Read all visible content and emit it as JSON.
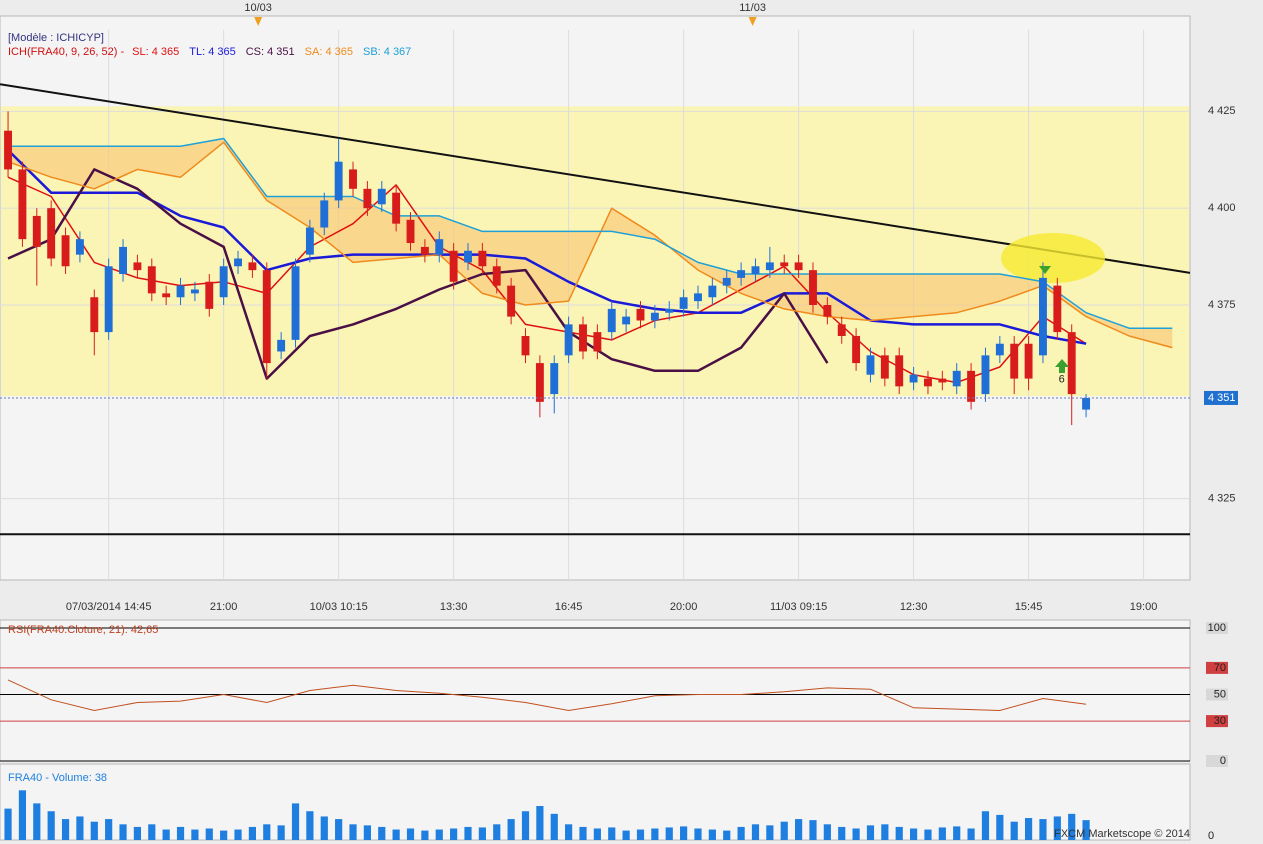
{
  "chart_data": [
    {
      "type": "candlestick",
      "title": "[Modèle : ICHICYP]",
      "subtitle": "ICH(FRA40, 9, 26, 52) -",
      "x": [
        0,
        1,
        2,
        3,
        4,
        5,
        6,
        7,
        8,
        9,
        10,
        11,
        12,
        13,
        14,
        15,
        16,
        17,
        18,
        19,
        20,
        21,
        22,
        23,
        24,
        25,
        26,
        27,
        28,
        29,
        30,
        31,
        32,
        33,
        34,
        35,
        36,
        37,
        38,
        39,
        40,
        41,
        42,
        43,
        44,
        45,
        46,
        47,
        48,
        49,
        50,
        51,
        52,
        53,
        54,
        55,
        56,
        57,
        58,
        59,
        60,
        61,
        62,
        63,
        64,
        65,
        66,
        67,
        68,
        69,
        70,
        71,
        72,
        73,
        74,
        75
      ],
      "open": [
        4420,
        4410,
        4398,
        4400,
        4393,
        4388,
        4377,
        4368,
        4383,
        4386,
        4385,
        4378,
        4377,
        4378,
        4381,
        4377,
        4385,
        4386,
        4384,
        4363,
        4366,
        4388,
        4395,
        4402,
        4410,
        4405,
        4401,
        4404,
        4397,
        4390,
        4388,
        4389,
        4386,
        4389,
        4385,
        4380,
        4367,
        4360,
        4352,
        4362,
        4370,
        4368,
        4368,
        4370,
        4374,
        4371,
        4373,
        4374,
        4376,
        4377,
        4380,
        4382,
        4383,
        4384,
        4386,
        4386,
        4384,
        4375,
        4370,
        4367,
        4357,
        4362,
        4362,
        4355,
        4356,
        4356,
        4354,
        4358,
        4352,
        4362,
        4365,
        4365,
        4362,
        4380,
        4368,
        4348
      ],
      "high": [
        4425,
        4412,
        4400,
        4402,
        4395,
        4394,
        4379,
        4387,
        4392,
        4388,
        4387,
        4380,
        4382,
        4381,
        4383,
        4387,
        4389,
        4388,
        4386,
        4368,
        4387,
        4397,
        4404,
        4418,
        4412,
        4407,
        4407,
        4406,
        4399,
        4392,
        4394,
        4391,
        4391,
        4391,
        4387,
        4382,
        4369,
        4362,
        4362,
        4372,
        4372,
        4370,
        4376,
        4374,
        4376,
        4375,
        4376,
        4379,
        4380,
        4382,
        4384,
        4386,
        4387,
        4390,
        4388,
        4388,
        4386,
        4377,
        4372,
        4369,
        4364,
        4364,
        4364,
        4359,
        4358,
        4358,
        4360,
        4360,
        4364,
        4367,
        4367,
        4367,
        4386,
        4382,
        4370,
        4352
      ],
      "low": [
        4408,
        4390,
        4380,
        4385,
        4383,
        4386,
        4362,
        4366,
        4381,
        4382,
        4376,
        4375,
        4375,
        4376,
        4372,
        4375,
        4383,
        4382,
        4356,
        4361,
        4364,
        4386,
        4393,
        4400,
        4403,
        4398,
        4399,
        4394,
        4389,
        4386,
        4386,
        4379,
        4384,
        4383,
        4378,
        4370,
        4360,
        4346,
        4347,
        4360,
        4361,
        4361,
        4366,
        4368,
        4369,
        4369,
        4371,
        4372,
        4374,
        4375,
        4378,
        4380,
        4381,
        4382,
        4383,
        4382,
        4373,
        4370,
        4365,
        4358,
        4355,
        4354,
        4352,
        4353,
        4352,
        4353,
        4352,
        4348,
        4350,
        4360,
        4352,
        4353,
        4360,
        4366,
        4344,
        4346
      ],
      "close": [
        4410,
        4392,
        4390,
        4387,
        4385,
        4392,
        4368,
        4385,
        4390,
        4384,
        4378,
        4377,
        4380,
        4379,
        4374,
        4385,
        4387,
        4384,
        4360,
        4366,
        4385,
        4395,
        4402,
        4412,
        4405,
        4400,
        4405,
        4396,
        4391,
        4388,
        4392,
        4381,
        4389,
        4385,
        4380,
        4372,
        4362,
        4350,
        4360,
        4370,
        4363,
        4363,
        4374,
        4372,
        4371,
        4373,
        4374,
        4377,
        4378,
        4380,
        4382,
        4384,
        4385,
        4386,
        4385,
        4384,
        4375,
        4372,
        4367,
        4360,
        4362,
        4356,
        4354,
        4357,
        4354,
        4355,
        4358,
        4350,
        4362,
        4365,
        4356,
        4356,
        4382,
        4368,
        4352,
        4351
      ],
      "up_color": "#1f6fd6",
      "down_color": "#d81c1c",
      "series": [
        {
          "label": "SL: 4 365",
          "color": "#e01010",
          "width": 1.5,
          "x": [
            0,
            3,
            6,
            9,
            12,
            15,
            18,
            21,
            24,
            27,
            30,
            33,
            36,
            39,
            42,
            45,
            48,
            51,
            54,
            57,
            60,
            63,
            66,
            69,
            72,
            75
          ],
          "values": [
            4408,
            4403,
            4386,
            4382,
            4380,
            4381,
            4378,
            4390,
            4396,
            4406,
            4390,
            4384,
            4370,
            4368,
            4366,
            4371,
            4373,
            4379,
            4385,
            4373,
            4363,
            4357,
            4355,
            4359,
            4372,
            4365
          ]
        },
        {
          "label": "TL: 4 365",
          "color": "#1a1ad8",
          "width": 2.5,
          "x": [
            0,
            3,
            6,
            9,
            12,
            15,
            18,
            21,
            24,
            27,
            30,
            33,
            36,
            39,
            42,
            45,
            48,
            51,
            54,
            57,
            60,
            63,
            66,
            69,
            72,
            75
          ],
          "values": [
            4415,
            4404,
            4404,
            4404,
            4398,
            4395,
            4384,
            4387,
            4388,
            4388,
            4388,
            4388,
            4387,
            4381,
            4376,
            4374,
            4373,
            4373,
            4378,
            4378,
            4371,
            4370,
            4370,
            4370,
            4367,
            4365
          ]
        },
        {
          "label": "CS: 4 351",
          "color": "#4a0f45",
          "width": 2.5,
          "x": [
            0,
            3,
            6,
            9,
            12,
            15,
            18,
            21,
            24,
            27,
            30,
            33,
            36,
            39,
            42,
            45,
            48,
            51,
            54,
            57
          ],
          "values": [
            4387,
            4392,
            4410,
            4405,
            4396,
            4390,
            4356,
            4367,
            4370,
            4374,
            4379,
            4383,
            4384,
            4368,
            4361,
            4358,
            4358,
            4364,
            4378,
            4360
          ]
        },
        {
          "label": "SA: 4 365",
          "color": "#f08a1c",
          "width": 1.5,
          "x": [
            0,
            3,
            6,
            9,
            12,
            15,
            18,
            21,
            24,
            27,
            30,
            33,
            36,
            39,
            42,
            45,
            48,
            51,
            54,
            57,
            60,
            63,
            66,
            69,
            72,
            75,
            78,
            81
          ],
          "values": [
            4412,
            4408,
            4405,
            4410,
            4408,
            4417,
            4402,
            4395,
            4386,
            4387,
            4388,
            4378,
            4375,
            4376,
            4400,
            4393,
            4384,
            4378,
            4374,
            4372,
            4371,
            4372,
            4373,
            4376,
            4380,
            4372,
            4367,
            4364
          ]
        },
        {
          "label": "SB: 4 367",
          "color": "#1ea0d8",
          "width": 1.5,
          "x": [
            0,
            3,
            6,
            9,
            12,
            15,
            18,
            21,
            24,
            27,
            30,
            33,
            36,
            39,
            42,
            45,
            48,
            51,
            54,
            57,
            60,
            63,
            66,
            69,
            72,
            75,
            78,
            81
          ],
          "values": [
            4416,
            4416,
            4416,
            4416,
            4416,
            4418,
            4403,
            4403,
            4403,
            4398,
            4398,
            4394,
            4394,
            4394,
            4394,
            4392,
            4386,
            4383,
            4383,
            4383,
            4383,
            4383,
            4383,
            4383,
            4381,
            4373,
            4369,
            4369
          ]
        }
      ],
      "kumo_color": "#f8c878",
      "band": [
        4351.5,
        4426.3
      ],
      "band_color": "#fbf5b5",
      "trend_line": {
        "x": [
          -0.56,
          82.23
        ],
        "y": [
          4432,
          4383.3
        ]
      },
      "support_line": 4315.8,
      "last_price": {
        "value": 4351,
        "label": "4 351"
      },
      "xlim": [
        -0.56,
        82.23
      ],
      "xticks": [
        {
          "value": 7,
          "label": "07/03/2014 14:45"
        },
        {
          "value": 15,
          "label": "21:00"
        },
        {
          "value": 23,
          "label": "10/03 10:15"
        },
        {
          "value": 31,
          "label": "13:30"
        },
        {
          "value": 39,
          "label": "16:45"
        },
        {
          "value": 47,
          "label": "20:00"
        },
        {
          "value": 55,
          "label": "11/03 09:15"
        },
        {
          "value": 63,
          "label": "12:30"
        },
        {
          "value": 71,
          "label": "15:45"
        },
        {
          "value": 79,
          "label": "19:00"
        }
      ],
      "ylim": [
        4304,
        4446
      ],
      "yticks": [
        {
          "value": 4425,
          "label": "4 425"
        },
        {
          "value": 4400,
          "label": "4 400"
        },
        {
          "value": 4375,
          "label": "4 375"
        },
        {
          "value": 4325,
          "label": "4 325"
        }
      ],
      "grid": true,
      "date_markers": [
        {
          "value": 17.4,
          "label": "10/03"
        },
        {
          "value": 51.8,
          "label": "11/03"
        }
      ],
      "annotations": [
        {
          "x": 73.3,
          "y": 4356.2,
          "text": "6"
        }
      ]
    },
    {
      "type": "line",
      "title": "RSI(FRA40.Cloture, 21): 42,65",
      "series": [
        {
          "color": "#c0501e",
          "x": [
            0,
            3,
            6,
            9,
            12,
            15,
            18,
            21,
            24,
            27,
            30,
            33,
            36,
            39,
            42,
            45,
            48,
            51,
            54,
            57,
            60,
            63,
            66,
            69,
            72,
            75
          ],
          "values": [
            61,
            46,
            38,
            44,
            45,
            50,
            44,
            53,
            57,
            53,
            51,
            48,
            44,
            38,
            43,
            49,
            50,
            50,
            52,
            55,
            54,
            40,
            39,
            38,
            47,
            42.65
          ]
        }
      ],
      "xlim": [
        -0.56,
        82.23
      ],
      "ylim": [
        0,
        100
      ],
      "yticks": [
        100,
        70,
        50,
        30,
        0
      ],
      "tick_colors": [
        "#000000",
        "#d04040",
        "#000000",
        "#d04040",
        "#000000"
      ]
    },
    {
      "type": "bar",
      "title": "FRA40 - Volume: 38",
      "color": "#1e7fe0",
      "x": [
        0,
        1,
        2,
        3,
        4,
        5,
        6,
        7,
        8,
        9,
        10,
        11,
        12,
        13,
        14,
        15,
        16,
        17,
        18,
        19,
        20,
        21,
        22,
        23,
        24,
        25,
        26,
        27,
        28,
        29,
        30,
        31,
        32,
        33,
        34,
        35,
        36,
        37,
        38,
        39,
        40,
        41,
        42,
        43,
        44,
        45,
        46,
        47,
        48,
        49,
        50,
        51,
        52,
        53,
        54,
        55,
        56,
        57,
        58,
        59,
        60,
        61,
        62,
        63,
        64,
        65,
        66,
        67,
        68,
        69,
        70,
        71,
        72,
        73,
        74,
        75
      ],
      "values": [
        60,
        95,
        70,
        55,
        40,
        45,
        35,
        40,
        30,
        25,
        30,
        20,
        25,
        20,
        22,
        18,
        20,
        25,
        30,
        28,
        70,
        55,
        45,
        40,
        30,
        28,
        25,
        20,
        22,
        18,
        20,
        22,
        25,
        24,
        30,
        40,
        55,
        65,
        50,
        30,
        25,
        22,
        24,
        18,
        20,
        22,
        24,
        26,
        22,
        20,
        18,
        25,
        30,
        28,
        35,
        40,
        38,
        30,
        25,
        22,
        28,
        30,
        25,
        22,
        20,
        24,
        26,
        22,
        55,
        48,
        35,
        42,
        40,
        45,
        50,
        38
      ],
      "xlim": [
        -0.56,
        82.23
      ],
      "ylim": [
        0,
        130
      ],
      "yticks": [
        0
      ]
    }
  ],
  "footer": {
    "credit": "FXCM Marketscope © 2014"
  }
}
